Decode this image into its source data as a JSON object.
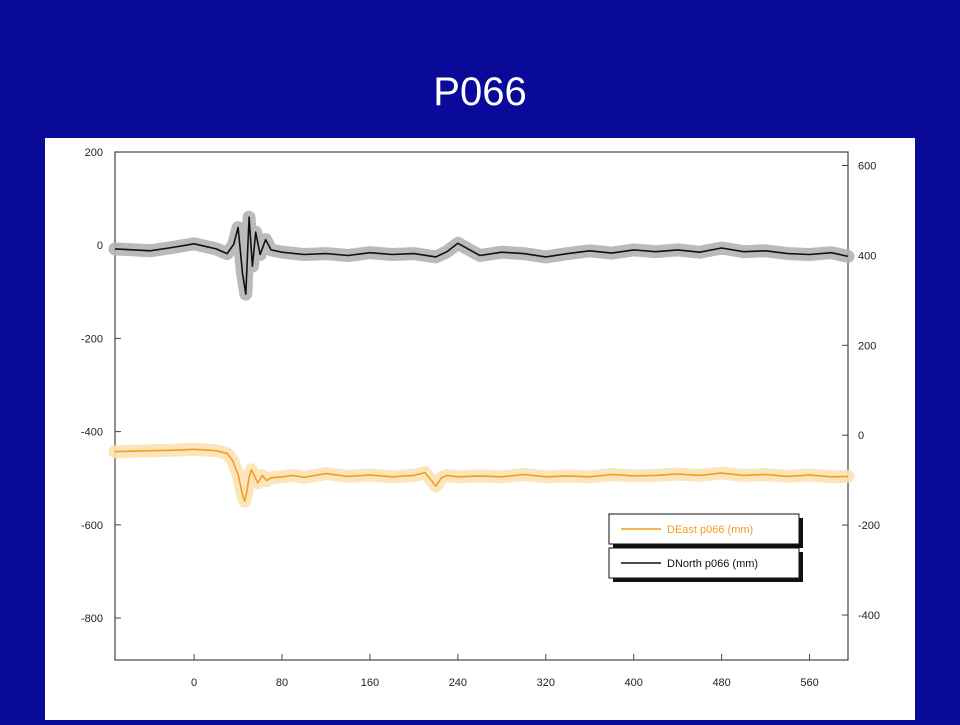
{
  "slide": {
    "title": "P066"
  },
  "chart_data": {
    "type": "line",
    "title": "",
    "xlabel": "",
    "ylabel": "",
    "xlim": [
      -72,
      595
    ],
    "ylim_left": [
      -890,
      200
    ],
    "ylim_right": [
      -500,
      630
    ],
    "x_ticks": [
      0,
      80,
      160,
      240,
      320,
      400,
      480,
      560
    ],
    "y_ticks_left": [
      200,
      0,
      -200,
      -400,
      -600,
      -800
    ],
    "y_ticks_right": [
      600,
      400,
      200,
      0,
      -200,
      -400
    ],
    "grid": false,
    "legend_position": "bottom-right",
    "series": [
      {
        "name": "DEast p066 (mm)",
        "axis": "left",
        "color": "#f39c1f",
        "band_color": "#fbe3b4",
        "x": [
          -72,
          -40,
          -20,
          0,
          20,
          30,
          35,
          40,
          44,
          46,
          48,
          50,
          52,
          55,
          58,
          62,
          66,
          70,
          80,
          90,
          100,
          120,
          140,
          160,
          180,
          200,
          210,
          215,
          220,
          225,
          230,
          240,
          260,
          280,
          300,
          320,
          340,
          360,
          380,
          400,
          420,
          440,
          460,
          480,
          500,
          520,
          540,
          560,
          580,
          595
        ],
        "y": [
          -443,
          -441,
          -440,
          -438,
          -441,
          -447,
          -462,
          -492,
          -535,
          -549,
          -528,
          -498,
          -482,
          -496,
          -510,
          -494,
          -505,
          -499,
          -497,
          -494,
          -498,
          -490,
          -496,
          -493,
          -497,
          -494,
          -488,
          -502,
          -517,
          -499,
          -494,
          -497,
          -495,
          -497,
          -492,
          -497,
          -495,
          -497,
          -492,
          -495,
          -494,
          -491,
          -494,
          -489,
          -494,
          -492,
          -496,
          -493,
          -497,
          -496
        ]
      },
      {
        "name": "DNorth p066 (mm)",
        "axis": "left",
        "color": "#111111",
        "band_color": "#b3b3b3",
        "x": [
          -72,
          -40,
          -20,
          0,
          20,
          30,
          36,
          40,
          44,
          47,
          50,
          53,
          56,
          60,
          65,
          70,
          80,
          100,
          120,
          140,
          160,
          180,
          200,
          220,
          230,
          240,
          260,
          280,
          300,
          320,
          340,
          360,
          380,
          400,
          420,
          440,
          460,
          480,
          500,
          520,
          540,
          560,
          580,
          595
        ],
        "y": [
          -8,
          -12,
          -5,
          3,
          -8,
          -18,
          2,
          38,
          -60,
          -105,
          60,
          -45,
          28,
          -20,
          12,
          -10,
          -15,
          -20,
          -18,
          -22,
          -16,
          -20,
          -18,
          -25,
          -14,
          4,
          -22,
          -15,
          -18,
          -25,
          -18,
          -12,
          -17,
          -10,
          -14,
          -10,
          -15,
          -6,
          -14,
          -12,
          -18,
          -20,
          -16,
          -24
        ]
      }
    ]
  }
}
